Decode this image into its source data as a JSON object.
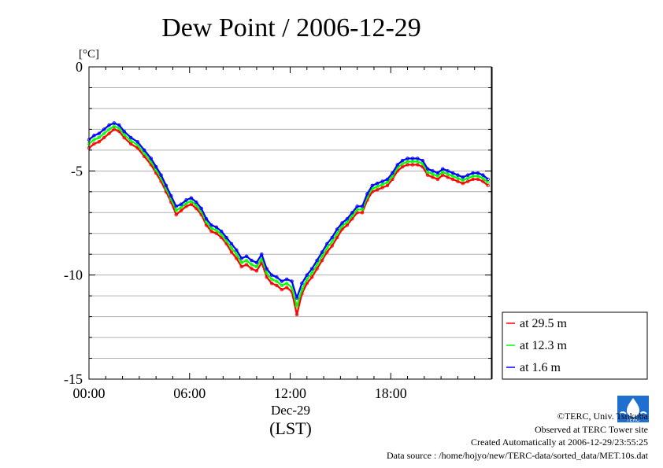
{
  "chart_data": {
    "type": "line",
    "title": "Dew Point / 2006-12-29",
    "ylabel": "[°C]",
    "xlabel": "(LST)",
    "date_label": "Dec-29",
    "x_unit": "hour",
    "xlim": [
      0,
      24
    ],
    "ylim": [
      -15,
      0
    ],
    "yticks": [
      {
        "value": 0,
        "label": "0"
      },
      {
        "value": -5,
        "label": "-5"
      },
      {
        "value": -10,
        "label": "-10"
      },
      {
        "value": -15,
        "label": "-15"
      }
    ],
    "xticks": [
      {
        "value": 0,
        "label": "00:00"
      },
      {
        "value": 6,
        "label": "06:00"
      },
      {
        "value": 12,
        "label": "12:00"
      },
      {
        "value": 18,
        "label": "18:00"
      }
    ],
    "grid": true,
    "legend": "bottom-right",
    "series": [
      {
        "name": "at 29.5 m",
        "color": "#ff0000",
        "x": [
          0.0,
          0.3,
          0.6,
          0.9,
          1.2,
          1.5,
          1.8,
          2.1,
          2.5,
          2.9,
          3.3,
          3.7,
          4.0,
          4.3,
          4.6,
          4.9,
          5.2,
          5.5,
          5.8,
          6.1,
          6.4,
          6.7,
          7.0,
          7.3,
          7.6,
          7.9,
          8.2,
          8.5,
          8.8,
          9.1,
          9.4,
          9.7,
          10.0,
          10.3,
          10.6,
          10.9,
          11.2,
          11.5,
          11.8,
          12.1,
          12.4,
          12.7,
          13.0,
          13.3,
          13.6,
          13.9,
          14.2,
          14.5,
          14.8,
          15.1,
          15.4,
          15.7,
          16.0,
          16.3,
          16.6,
          16.9,
          17.2,
          17.5,
          17.8,
          18.1,
          18.4,
          18.7,
          19.0,
          19.3,
          19.6,
          19.9,
          20.2,
          20.5,
          20.8,
          21.1,
          21.4,
          21.7,
          22.0,
          22.3,
          22.6,
          22.9,
          23.2,
          23.5,
          23.8
        ],
        "y": [
          -3.9,
          -3.7,
          -3.6,
          -3.4,
          -3.2,
          -3.0,
          -3.1,
          -3.4,
          -3.7,
          -3.9,
          -4.3,
          -4.7,
          -5.1,
          -5.5,
          -6.0,
          -6.5,
          -7.1,
          -6.9,
          -6.7,
          -6.6,
          -6.8,
          -7.1,
          -7.6,
          -7.9,
          -8.0,
          -8.2,
          -8.5,
          -8.9,
          -9.2,
          -9.6,
          -9.5,
          -9.7,
          -9.8,
          -9.4,
          -10.1,
          -10.4,
          -10.5,
          -10.7,
          -10.6,
          -10.8,
          -11.9,
          -10.9,
          -10.4,
          -10.1,
          -9.7,
          -9.3,
          -8.9,
          -8.6,
          -8.2,
          -7.8,
          -7.6,
          -7.3,
          -7.0,
          -7.0,
          -6.4,
          -6.0,
          -5.9,
          -5.8,
          -5.7,
          -5.4,
          -5.0,
          -4.8,
          -4.7,
          -4.7,
          -4.7,
          -4.8,
          -5.2,
          -5.3,
          -5.4,
          -5.2,
          -5.3,
          -5.4,
          -5.5,
          -5.6,
          -5.5,
          -5.4,
          -5.4,
          -5.5,
          -5.7
        ]
      },
      {
        "name": "at 12.3 m",
        "color": "#00ff00",
        "x": [
          0.0,
          0.3,
          0.6,
          0.9,
          1.2,
          1.5,
          1.8,
          2.1,
          2.5,
          2.9,
          3.3,
          3.7,
          4.0,
          4.3,
          4.6,
          4.9,
          5.2,
          5.5,
          5.8,
          6.1,
          6.4,
          6.7,
          7.0,
          7.3,
          7.6,
          7.9,
          8.2,
          8.5,
          8.8,
          9.1,
          9.4,
          9.7,
          10.0,
          10.3,
          10.6,
          10.9,
          11.2,
          11.5,
          11.8,
          12.1,
          12.4,
          12.7,
          13.0,
          13.3,
          13.6,
          13.9,
          14.2,
          14.5,
          14.8,
          15.1,
          15.4,
          15.7,
          16.0,
          16.3,
          16.6,
          16.9,
          17.2,
          17.5,
          17.8,
          18.1,
          18.4,
          18.7,
          19.0,
          19.3,
          19.6,
          19.9,
          20.2,
          20.5,
          20.8,
          21.1,
          21.4,
          21.7,
          22.0,
          22.3,
          22.6,
          22.9,
          23.2,
          23.5,
          23.8
        ],
        "y": [
          -3.7,
          -3.5,
          -3.4,
          -3.2,
          -3.0,
          -2.85,
          -2.95,
          -3.25,
          -3.55,
          -3.75,
          -4.15,
          -4.55,
          -4.95,
          -5.35,
          -5.85,
          -6.35,
          -6.9,
          -6.75,
          -6.55,
          -6.45,
          -6.65,
          -6.95,
          -7.45,
          -7.75,
          -7.85,
          -8.05,
          -8.35,
          -8.7,
          -9.0,
          -9.4,
          -9.3,
          -9.5,
          -9.6,
          -9.2,
          -9.9,
          -10.2,
          -10.3,
          -10.5,
          -10.4,
          -10.6,
          -11.5,
          -10.7,
          -10.2,
          -9.9,
          -9.5,
          -9.1,
          -8.7,
          -8.4,
          -8.0,
          -7.65,
          -7.45,
          -7.15,
          -6.85,
          -6.85,
          -6.25,
          -5.85,
          -5.75,
          -5.65,
          -5.55,
          -5.25,
          -4.85,
          -4.65,
          -4.55,
          -4.55,
          -4.55,
          -4.65,
          -5.05,
          -5.15,
          -5.25,
          -5.05,
          -5.15,
          -5.25,
          -5.35,
          -5.45,
          -5.35,
          -5.25,
          -5.25,
          -5.35,
          -5.55
        ]
      },
      {
        "name": "at 1.6 m",
        "color": "#0000ff",
        "x": [
          0.0,
          0.3,
          0.6,
          0.9,
          1.2,
          1.5,
          1.8,
          2.1,
          2.5,
          2.9,
          3.3,
          3.7,
          4.0,
          4.3,
          4.6,
          4.9,
          5.2,
          5.5,
          5.8,
          6.1,
          6.4,
          6.7,
          7.0,
          7.3,
          7.6,
          7.9,
          8.2,
          8.5,
          8.8,
          9.1,
          9.4,
          9.7,
          10.0,
          10.3,
          10.6,
          10.9,
          11.2,
          11.5,
          11.8,
          12.1,
          12.4,
          12.7,
          13.0,
          13.3,
          13.6,
          13.9,
          14.2,
          14.5,
          14.8,
          15.1,
          15.4,
          15.7,
          16.0,
          16.3,
          16.6,
          16.9,
          17.2,
          17.5,
          17.8,
          18.1,
          18.4,
          18.7,
          19.0,
          19.3,
          19.6,
          19.9,
          20.2,
          20.5,
          20.8,
          21.1,
          21.4,
          21.7,
          22.0,
          22.3,
          22.6,
          22.9,
          23.2,
          23.5,
          23.8
        ],
        "y": [
          -3.5,
          -3.3,
          -3.2,
          -3.0,
          -2.8,
          -2.7,
          -2.8,
          -3.1,
          -3.4,
          -3.6,
          -4.0,
          -4.4,
          -4.8,
          -5.2,
          -5.7,
          -6.2,
          -6.7,
          -6.6,
          -6.4,
          -6.3,
          -6.5,
          -6.8,
          -7.3,
          -7.6,
          -7.7,
          -7.9,
          -8.2,
          -8.5,
          -8.8,
          -9.2,
          -9.1,
          -9.3,
          -9.4,
          -9.0,
          -9.7,
          -10.0,
          -10.1,
          -10.3,
          -10.2,
          -10.3,
          -11.1,
          -10.4,
          -10.0,
          -9.7,
          -9.3,
          -8.9,
          -8.5,
          -8.2,
          -7.8,
          -7.5,
          -7.3,
          -7.0,
          -6.7,
          -6.7,
          -6.1,
          -5.7,
          -5.6,
          -5.5,
          -5.4,
          -5.1,
          -4.7,
          -4.5,
          -4.4,
          -4.4,
          -4.4,
          -4.5,
          -4.9,
          -5.0,
          -5.1,
          -4.9,
          -5.0,
          -5.1,
          -5.2,
          -5.3,
          -5.2,
          -5.1,
          -5.1,
          -5.2,
          -5.4
        ]
      }
    ]
  },
  "credits": {
    "copyright": "©TERC, Univ. Tsukuba",
    "observed": "Observed at TERC Tower site",
    "created": "Created Automatically at 2006-12-29/23:55:25",
    "source": "Data source : /home/hojyo/new/TERC-data/sorted_data/MET.10s.dat",
    "logo_text": "TERC"
  }
}
